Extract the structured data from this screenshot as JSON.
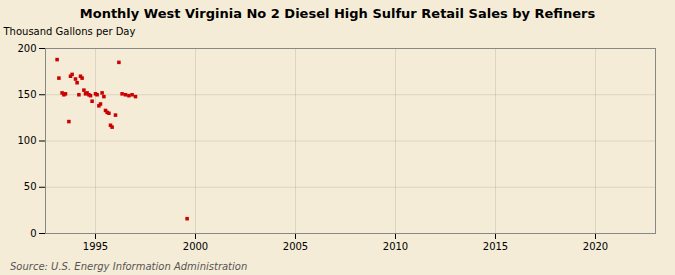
{
  "chart_data": {
    "type": "scatter",
    "title": "Monthly West Virginia No 2 Diesel High Sulfur Retail Sales by Refiners",
    "ylabel": "Thousand Gallons per Day",
    "source": "Source: U.S. Energy Information Administration",
    "color": "#cc0000",
    "marker": "square",
    "grid": true,
    "xlim": [
      1992.5,
      2023
    ],
    "ylim": [
      0,
      200
    ],
    "xticks": [
      1995,
      2000,
      2005,
      2010,
      2015,
      2020
    ],
    "yticks": [
      0,
      50,
      100,
      150,
      200
    ],
    "x": [
      1993.08,
      1993.17,
      1993.33,
      1993.42,
      1993.5,
      1993.67,
      1993.75,
      1993.83,
      1994.0,
      1994.08,
      1994.17,
      1994.25,
      1994.33,
      1994.42,
      1994.5,
      1994.58,
      1994.67,
      1994.75,
      1994.83,
      1995.0,
      1995.08,
      1995.17,
      1995.25,
      1995.33,
      1995.42,
      1995.5,
      1995.58,
      1995.67,
      1995.75,
      1995.83,
      1996.0,
      1996.17,
      1996.33,
      1996.5,
      1996.67,
      1996.83,
      1997.0,
      1999.58
    ],
    "values": [
      188,
      168,
      152,
      150,
      151,
      121,
      170,
      172,
      167,
      163,
      150,
      170,
      168,
      155,
      151,
      152,
      150,
      149,
      143,
      151,
      150,
      138,
      140,
      152,
      148,
      133,
      131,
      130,
      117,
      115,
      128,
      185,
      151,
      150,
      149,
      150,
      148,
      16
    ]
  }
}
